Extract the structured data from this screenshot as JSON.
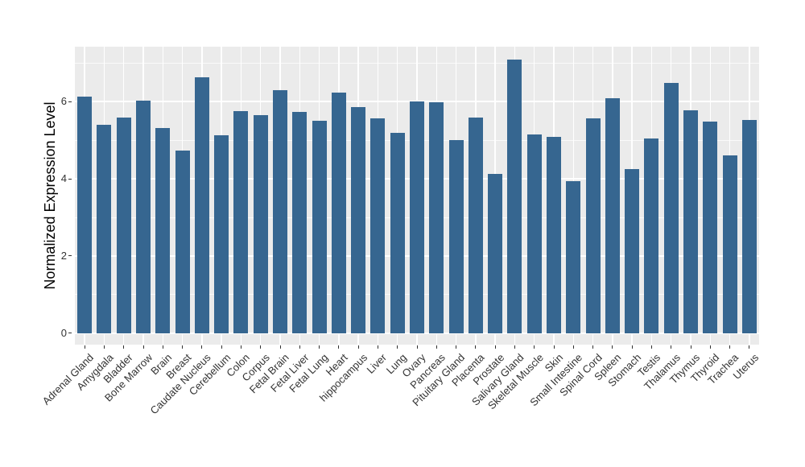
{
  "chart_data": {
    "type": "bar",
    "title": "",
    "xlabel": "",
    "ylabel": "Normalized Expression Level",
    "legend": "none",
    "grid": "white major and minor gridlines on gray panel",
    "categories": [
      "Adrenal Gland",
      "Amygdala",
      "Bladder",
      "Bone Marrow",
      "Brain",
      "Breast",
      "Caudate Nucleus",
      "Cerebellum",
      "Colon",
      "Corpus",
      "Fetal Brain",
      "Fetal Liver",
      "Fetal Lung",
      "Heart",
      "hippocampus",
      "Liver",
      "Lung",
      "Ovary",
      "Pancreas",
      "Pituitary Gland",
      "Placenta",
      "Prostate",
      "Salivary Gland",
      "Skeletal Muscle",
      "Skin",
      "Small Intestine",
      "Spinal Cord",
      "Spleen",
      "Stomach",
      "Testis",
      "Thalamus",
      "Thymus",
      "Thyroid",
      "Trachea",
      "Uterus"
    ],
    "values": [
      6.14,
      5.4,
      5.6,
      6.04,
      5.32,
      4.74,
      6.64,
      5.14,
      5.76,
      5.66,
      6.31,
      5.74,
      5.5,
      6.23,
      5.86,
      5.58,
      5.2,
      6.01,
      5.98,
      5.01,
      5.6,
      4.12,
      7.1,
      5.16,
      5.09,
      3.94,
      5.58,
      6.1,
      4.25,
      5.04,
      6.5,
      5.78,
      5.48,
      4.6,
      5.52
    ],
    "y_ticks": [
      0,
      2,
      4,
      6
    ],
    "y_minor_ticks": [
      1,
      3,
      5,
      7
    ],
    "ylim": [
      -0.3,
      7.43
    ]
  },
  "colors": {
    "bar": "#366690",
    "panel_bg": "#EBEBEB",
    "gridline": "#FFFFFF",
    "tick_text": "#333333",
    "axis_title": "#000000",
    "page_bg": "#FFFFFF"
  }
}
